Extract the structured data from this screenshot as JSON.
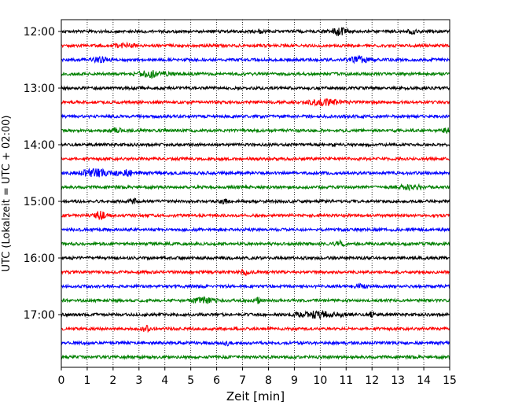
{
  "chart_data": {
    "type": "line",
    "title": "",
    "xlabel": "Zeit  [min]",
    "ylabel": "UTC (Lokalzeit = UTC + 02:00)",
    "xlim": [
      0,
      15
    ],
    "x_ticks": [
      0,
      1,
      2,
      3,
      4,
      5,
      6,
      7,
      8,
      9,
      10,
      11,
      12,
      13,
      14,
      15
    ],
    "x_tick_labels": [
      "0",
      "1",
      "2",
      "3",
      "4",
      "5",
      "6",
      "7",
      "8",
      "9",
      "10",
      "11",
      "12",
      "13",
      "14",
      "15"
    ],
    "y_tick_labels": [
      "12:00",
      "13:00",
      "14:00",
      "15:00",
      "16:00",
      "17:00"
    ],
    "minutes_per_trace": 15,
    "grid": {
      "x": true,
      "y": false,
      "style": "dotted"
    },
    "color_cycle": [
      "#000000",
      "#ff0000",
      "#0000ff",
      "#008000"
    ],
    "traces": [
      {
        "start": "12:00",
        "color": "#000000"
      },
      {
        "start": "12:15",
        "color": "#ff0000"
      },
      {
        "start": "12:30",
        "color": "#0000ff"
      },
      {
        "start": "12:45",
        "color": "#008000"
      },
      {
        "start": "13:00",
        "color": "#000000"
      },
      {
        "start": "13:15",
        "color": "#ff0000"
      },
      {
        "start": "13:30",
        "color": "#0000ff"
      },
      {
        "start": "13:45",
        "color": "#008000"
      },
      {
        "start": "14:00",
        "color": "#000000"
      },
      {
        "start": "14:15",
        "color": "#ff0000"
      },
      {
        "start": "14:30",
        "color": "#0000ff"
      },
      {
        "start": "14:45",
        "color": "#008000"
      },
      {
        "start": "15:00",
        "color": "#000000"
      },
      {
        "start": "15:15",
        "color": "#ff0000"
      },
      {
        "start": "15:30",
        "color": "#0000ff"
      },
      {
        "start": "15:45",
        "color": "#008000"
      },
      {
        "start": "16:00",
        "color": "#000000"
      },
      {
        "start": "16:15",
        "color": "#ff0000"
      },
      {
        "start": "16:30",
        "color": "#0000ff"
      },
      {
        "start": "16:45",
        "color": "#008000"
      },
      {
        "start": "17:00",
        "color": "#000000"
      },
      {
        "start": "17:15",
        "color": "#ff0000"
      },
      {
        "start": "17:30",
        "color": "#0000ff"
      },
      {
        "start": "17:45",
        "color": "#008000"
      }
    ]
  }
}
